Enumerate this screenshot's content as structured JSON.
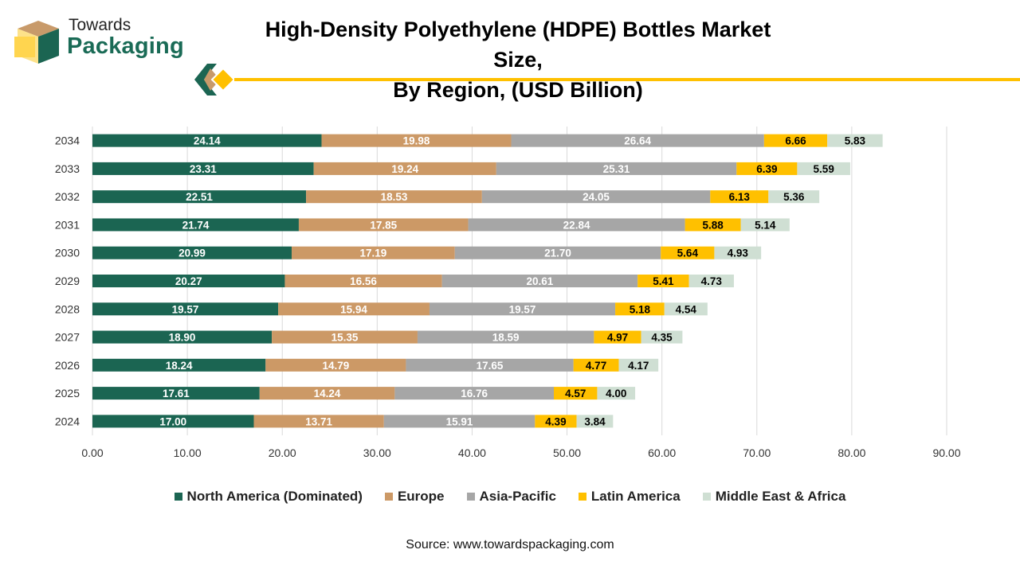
{
  "logo": {
    "line1": "Towards",
    "line2": "Packaging"
  },
  "title": {
    "line1": "High-Density Polyethylene (HDPE) Bottles Market Size,",
    "line2": "By Region, (USD Billion)"
  },
  "source": "Source: www.towardspackaging.com",
  "chart_data": {
    "type": "bar",
    "orientation": "horizontal",
    "stacked": true,
    "categories": [
      "2024",
      "2025",
      "2026",
      "2027",
      "2028",
      "2029",
      "2030",
      "2031",
      "2032",
      "2033",
      "2034"
    ],
    "series": [
      {
        "name": "North America (Dominated)",
        "color": "#1b6552",
        "label_color": "#ffffff",
        "values": [
          17.0,
          17.61,
          18.24,
          18.9,
          19.57,
          20.27,
          20.99,
          21.74,
          22.51,
          23.31,
          24.14
        ]
      },
      {
        "name": "Europe",
        "color": "#cc9966",
        "label_color": "#ffffff",
        "values": [
          13.71,
          14.24,
          14.79,
          15.35,
          15.94,
          16.56,
          17.19,
          17.85,
          18.53,
          19.24,
          19.98
        ]
      },
      {
        "name": "Asia-Pacific",
        "color": "#a6a6a6",
        "label_color": "#ffffff",
        "values": [
          15.91,
          16.76,
          17.65,
          18.59,
          19.57,
          20.61,
          21.7,
          22.84,
          24.05,
          25.31,
          26.64
        ]
      },
      {
        "name": "Latin America",
        "color": "#ffc000",
        "label_color": "#000000",
        "values": [
          4.39,
          4.57,
          4.77,
          4.97,
          5.18,
          5.41,
          5.64,
          5.88,
          6.13,
          6.39,
          6.66
        ]
      },
      {
        "name": "Middle East & Africa",
        "color": "#cfdfd3",
        "label_color": "#000000",
        "values": [
          3.84,
          4.0,
          4.17,
          4.35,
          4.54,
          4.73,
          4.93,
          5.14,
          5.36,
          5.59,
          5.83
        ]
      }
    ],
    "xlim": [
      0,
      90
    ],
    "xticks": [
      0,
      10,
      20,
      30,
      40,
      50,
      60,
      70,
      80,
      90
    ],
    "xtick_labels": [
      "0.00",
      "10.00",
      "20.00",
      "30.00",
      "40.00",
      "50.00",
      "60.00",
      "70.00",
      "80.00",
      "90.00"
    ],
    "grid": true,
    "legend_position": "bottom"
  }
}
